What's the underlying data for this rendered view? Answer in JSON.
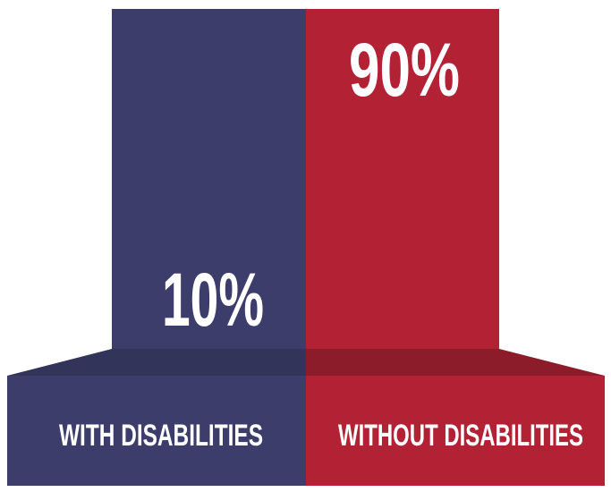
{
  "segments": [
    {
      "value": "10%",
      "label": "WITH DISABILITIES"
    },
    {
      "value": "90%",
      "label": "WITHOUT DISABILITIES"
    }
  ]
}
